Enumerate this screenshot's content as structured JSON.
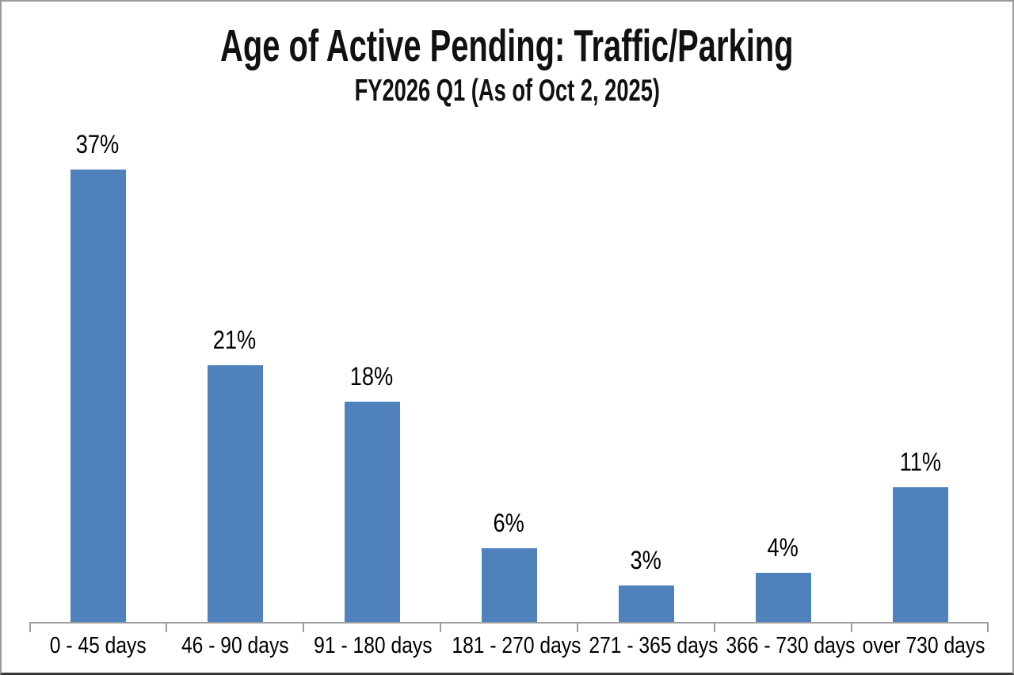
{
  "window": {
    "background_color": "#ffffff",
    "frame_color": "#9b9b9b",
    "frame_bottom_color": "#3a3a3a"
  },
  "chart_data": {
    "type": "bar",
    "title": "Age of Active Pending: Traffic/Parking",
    "subtitle": "FY2026 Q1 (As of Oct 2, 2025)",
    "categories": [
      "0 - 45 days",
      "46 - 90 days",
      "91 - 180 days",
      "181 - 270 days",
      "271 - 365 days",
      "366 - 730 days",
      "over 730 days"
    ],
    "values": [
      37,
      21,
      18,
      6,
      3,
      4,
      11
    ],
    "value_labels": [
      "37%",
      "21%",
      "18%",
      "6%",
      "3%",
      "4%",
      "11%"
    ],
    "xlabel": "",
    "ylabel": "",
    "ylim": [
      0,
      41
    ],
    "y_axis_shown": false,
    "grid": false,
    "legend": null,
    "bar_color": "#4F81BD",
    "axis_color": "#9d9d9d",
    "text_color": "#000000",
    "title_color": "#111111"
  }
}
